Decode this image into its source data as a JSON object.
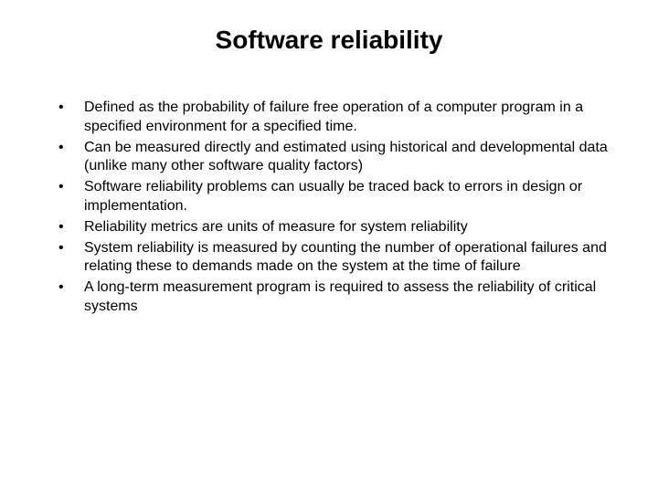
{
  "slide": {
    "title": "Software reliability",
    "title_fontsize": 28,
    "title_fontweight": "bold",
    "title_align": "center",
    "body_fontsize": 16,
    "background_color": "#ffffff",
    "text_color": "#000000",
    "font_family": "Arial",
    "bullets": [
      "Defined as the probability of failure free operation of a computer program in a specified environment for a specified time.",
      "Can be measured directly and estimated using historical and developmental data (unlike many other software quality factors)",
      "Software reliability problems can usually be traced back to errors in design or implementation.",
      "Reliability metrics are units of measure for system reliability",
      "System reliability is measured by counting the number of operational failures and relating these to demands made on the system at the time of failure",
      "A long-term measurement program is required to assess the reliability of critical systems"
    ]
  }
}
